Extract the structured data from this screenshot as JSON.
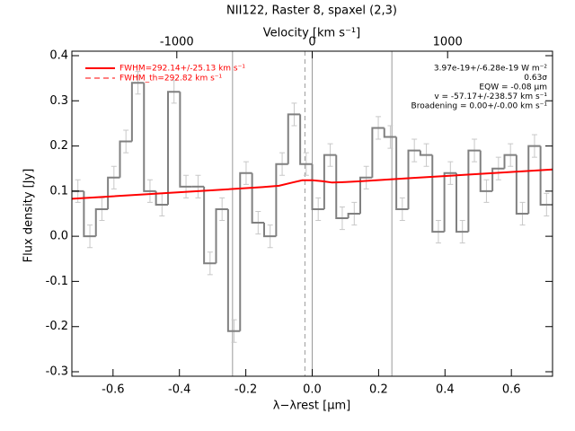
{
  "chart_data": {
    "type": "histogram",
    "title": "NII122, Raster 8, spaxel (2,3)",
    "xlabel": "λ−λrest [µm]",
    "ylabel": "Flux density [Jy]",
    "x2label": "Velocity [km s⁻¹]",
    "xlim": [
      -0.724,
      0.724
    ],
    "ylim": [
      -0.31,
      0.41
    ],
    "x2lim": [
      -1775,
      1775
    ],
    "xticks": [
      {
        "value": -0.6,
        "label": "-0.6"
      },
      {
        "value": -0.4,
        "label": "-0.4"
      },
      {
        "value": -0.2,
        "label": "-0.2"
      },
      {
        "value": 0,
        "label": "0.0"
      },
      0.2,
      0.4,
      0.6
    ],
    "yticks": [
      {
        "value": -0.3,
        "label": "-0.3"
      },
      {
        "value": -0.2,
        "label": "-0.2"
      },
      {
        "value": -0.1,
        "label": "-0.1"
      },
      {
        "value": 0,
        "label": "0.0"
      },
      0.1,
      0.2,
      0.3,
      0.4
    ],
    "x2ticks": [
      -1000,
      0,
      1000
    ],
    "bins": [
      -0.724,
      -0.6878,
      -0.6516,
      -0.6154,
      -0.5792,
      -0.543,
      -0.5068,
      -0.4706,
      -0.4344,
      -0.3982,
      -0.362,
      -0.3258,
      -0.2896,
      -0.2534,
      -0.2172,
      -0.181,
      -0.1448,
      -0.1086,
      -0.0724,
      -0.0362,
      0,
      0.0362,
      0.0724,
      0.1086,
      0.1448,
      0.181,
      0.2172,
      0.2534,
      0.2896,
      0.3258,
      0.362,
      0.3982,
      0.4344,
      0.4706,
      0.5068,
      0.543,
      0.5792,
      0.6154,
      0.6516,
      0.6878,
      0.724
    ],
    "values": [
      0.1,
      0.0,
      0.06,
      0.13,
      0.21,
      0.34,
      0.1,
      0.07,
      0.32,
      0.11,
      0.11,
      -0.06,
      0.06,
      -0.21,
      0.14,
      0.03,
      0.0,
      0.16,
      0.27,
      0.16,
      0.06,
      0.18,
      0.04,
      0.05,
      0.13,
      0.24,
      0.22,
      0.06,
      0.19,
      0.18,
      0.01,
      0.14,
      0.01,
      0.19,
      0.1,
      0.15,
      0.18,
      0.05,
      0.2,
      0.07
    ],
    "errors": [
      0.025,
      0.025,
      0.025,
      0.025,
      0.025,
      0.025,
      0.025,
      0.025,
      0.025,
      0.025,
      0.025,
      0.025,
      0.025,
      0.025,
      0.025,
      0.025,
      0.025,
      0.025,
      0.025,
      0.025,
      0.025,
      0.025,
      0.025,
      0.025,
      0.025,
      0.025,
      0.025,
      0.025,
      0.025,
      0.025,
      0.025,
      0.025,
      0.025,
      0.025,
      0.025,
      0.025,
      0.025,
      0.025,
      0.025,
      0.025
    ],
    "color": "#808080",
    "error_color": "#c8c8c8",
    "fit": {
      "color": "#ff0000",
      "x": [
        -0.724,
        -0.3,
        -0.15,
        -0.1,
        -0.06,
        -0.03,
        0,
        0.03,
        0.06,
        0.1,
        0.15,
        0.3,
        0.724
      ],
      "values": [
        0.083,
        0.102,
        0.109,
        0.112,
        0.119,
        0.124,
        0.124,
        0.122,
        0.119,
        0.12,
        0.122,
        0.129,
        0.148
      ]
    },
    "vlines": [
      {
        "x": -0.24,
        "style": "solid"
      },
      {
        "x": 0.24,
        "style": "solid"
      },
      {
        "x": -0.022,
        "style": "dashed"
      },
      {
        "x": 0,
        "style": "solid"
      }
    ],
    "legend": [
      "FWHM=292.14+/-25.13 km s⁻¹",
      "FWHM_th=292.82 km s⁻¹"
    ],
    "annotations": [
      "3.97e-19+/-6.28e-19 W m⁻²",
      "0.63σ",
      "EQW = -0.08 µm",
      "v = -57.17+/-238.57 km s⁻¹",
      "Broadening = 0.00+/-0.00 km s⁻¹"
    ]
  }
}
